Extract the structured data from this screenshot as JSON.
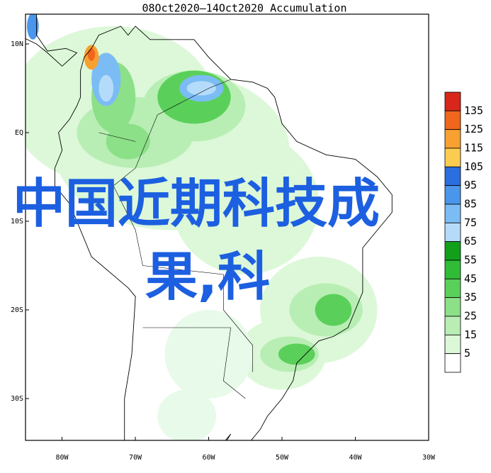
{
  "title": "08Oct2020—14Oct2020 Accumulation",
  "latitude_labels": [
    "10N",
    "EQ",
    "10S",
    "20S",
    "30S"
  ],
  "longitude_labels": [
    "80W",
    "70W",
    "60W",
    "50W",
    "40W",
    "30W"
  ],
  "colorbar": {
    "labels": [
      "135",
      "125",
      "115",
      "105",
      "95",
      "85",
      "75",
      "65",
      "55",
      "45",
      "35",
      "25",
      "15",
      "5"
    ],
    "colors": [
      "#d8261a",
      "#f0661c",
      "#f8a030",
      "#fccc50",
      "#2a6ee0",
      "#4a96ec",
      "#7cbcf4",
      "#b4dcfa",
      "#12a01a",
      "#30bc36",
      "#5ad05a",
      "#8ce088",
      "#b8eeb4",
      "#dcf8d8",
      "#ffffff"
    ]
  },
  "overlay_text": [
    "中国近期科技成",
    "果,科"
  ]
}
